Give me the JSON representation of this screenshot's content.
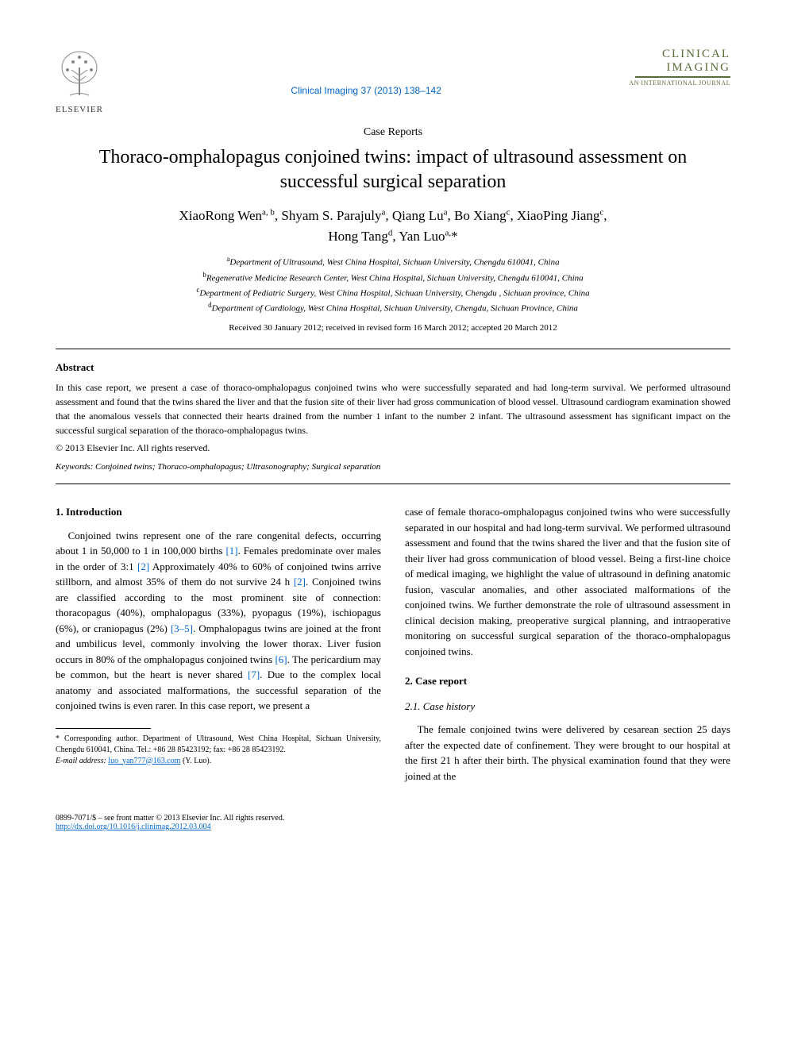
{
  "publisher": {
    "name": "ELSEVIER"
  },
  "journal": {
    "reference": "Clinical Imaging 37 (2013) 138–142",
    "logo_top": "CLINICAL",
    "logo_bottom": "IMAGING",
    "logo_sub": "AN INTERNATIONAL JOURNAL"
  },
  "article": {
    "type_label": "Case Reports",
    "title": "Thoraco-omphalopagus conjoined twins: impact of ultrasound assessment on successful surgical separation",
    "authors_line1_html": "XiaoRong Wen<sup>a, b</sup>, Shyam S. Parajuly<sup>a</sup>, Qiang Lu<sup>a</sup>, Bo Xiang<sup>c</sup>, XiaoPing Jiang<sup>c</sup>,",
    "authors_line2_html": "Hong Tang<sup>d</sup>, Yan Luo<sup>a,</sup>*",
    "affiliations": [
      {
        "sup": "a",
        "text": "Department of Ultrasound, West China Hospital, Sichuan University, Chengdu 610041, China"
      },
      {
        "sup": "b",
        "text": "Regenerative Medicine Research Center, West China Hospital, Sichuan University, Chengdu 610041, China"
      },
      {
        "sup": "c",
        "text": "Department of Pediatric Surgery, West China Hospital, Sichuan University, Chengdu , Sichuan province, China"
      },
      {
        "sup": "d",
        "text": "Department of Cardiology, West China Hospital, Sichuan University, Chengdu, Sichuan Province, China"
      }
    ],
    "dates": "Received 30 January 2012; received in revised form 16 March 2012; accepted 20 March 2012",
    "abstract_heading": "Abstract",
    "abstract_text": "In this case report, we present a case of thoraco-omphalopagus conjoined twins who were successfully separated and had long-term survival. We performed ultrasound assessment and found that the twins shared the liver and that the fusion site of their liver had gross communication of blood vessel. Ultrasound cardiogram examination showed that the anomalous vessels that connected their hearts drained from the number 1 infant to the number 2 infant. The ultrasound assessment has significant impact on the successful surgical separation of the thoraco-omphalopagus twins.",
    "copyright": "© 2013 Elsevier Inc. All rights reserved.",
    "keywords_label": "Keywords:",
    "keywords": "Conjoined twins; Thoraco-omphalopagus; Ultrasonography; Surgical separation"
  },
  "body": {
    "intro_heading": "1. Introduction",
    "intro_text_html": "Conjoined twins represent one of the rare congenital defects, occurring about 1 in 50,000 to 1 in 100,000 births <span class='ref-link'>[1]</span>. Females predominate over males in the order of 3:1 <span class='ref-link'>[2]</span> Approximately 40% to 60% of conjoined twins arrive stillborn, and almost 35% of them do not survive 24 h <span class='ref-link'>[2]</span>. Conjoined twins are classified according to the most prominent site of connection: thoracopagus (40%), omphalopagus (33%), pyopagus (19%), ischiopagus (6%), or craniopagus (2%) <span class='ref-link'>[3–5]</span>. Omphalopagus twins are joined at the front and umbilicus level, commonly involving the lower thorax. Liver fusion occurs in 80% of the omphalopagus conjoined twins <span class='ref-link'>[6]</span>. The pericardium may be common, but the heart is never shared <span class='ref-link'>[7]</span>. Due to the complex local anatomy and associated malformations, the successful separation of the conjoined twins is even rarer. In this case report, we present a",
    "col2_continuation": "case of female thoraco-omphalopagus conjoined twins who were successfully separated in our hospital and had long-term survival. We performed ultrasound assessment and found that the twins shared the liver and that the fusion site of their liver had gross communication of blood vessel. Being a first-line choice of medical imaging, we highlight the value of ultrasound in defining anatomic fusion, vascular anomalies, and other associated malformations of the conjoined twins. We further demonstrate the role of ultrasound assessment in clinical decision making, preoperative surgical planning, and intraoperative monitoring on successful surgical separation of the thoraco-omphalopagus conjoined twins.",
    "case_heading": "2. Case report",
    "case_sub_heading": "2.1. Case history",
    "case_text": "The female conjoined twins were delivered by cesarean section 25 days after the expected date of confinement. They were brought to our hospital at the first 21 h after their birth. The physical examination found that they were joined at the"
  },
  "footnote": {
    "corr": "* Corresponding author. Department of Ultrasound, West China Hospital, Sichuan University, Chengdu 610041, China. Tel.: +86 28 85423192; fax: +86 28 85423192.",
    "email_label": "E-mail address:",
    "email": "luo_yan777@163.com",
    "email_suffix": "(Y. Luo)."
  },
  "footer": {
    "left_line1": "0899-7071/$ – see front matter © 2013 Elsevier Inc. All rights reserved.",
    "doi": "http://dx.doi.org/10.1016/j.clinimag.2012.03.004"
  },
  "colors": {
    "link": "#0066cc",
    "journal_green": "#5a6b3a",
    "text": "#000000",
    "bg": "#ffffff"
  }
}
